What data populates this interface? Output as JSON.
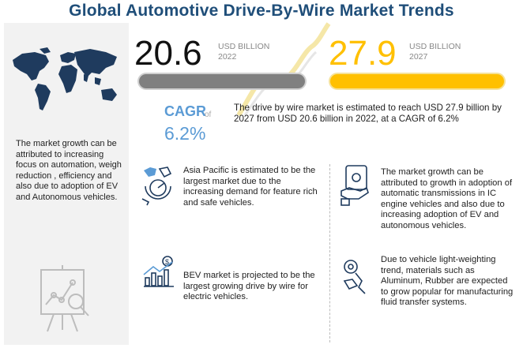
{
  "title": "Global Automotive Drive-By-Wire Market Trends",
  "market_2022": {
    "value": "20.6",
    "unit": "USD BILLION",
    "year": "2022",
    "bar_color": "#808080"
  },
  "market_2027": {
    "value": "27.9",
    "unit": "USD BILLION",
    "year": "2027",
    "bar_color": "#ffc000"
  },
  "cagr": {
    "label": "CAGR",
    "of": "of",
    "value": "6.2%"
  },
  "summary": "The drive by wire market is estimated to reach USD 27.9 billion by 2027 from USD 20.6 billion in 2022, at a CAGR of 6.2%",
  "sidebar": {
    "text": "The market growth can be attributed to increasing focus on automation, weigh reduction , efficiency and also due to adoption of EV and Autonomous vehicles."
  },
  "insights": [
    {
      "icon": "asia-pacific-map-icon",
      "text": "Asia Pacific is estimated to be the largest market due to the increasing demand for feature rich and safe vehicles."
    },
    {
      "icon": "transmission-hand-icon",
      "text": "The market growth can be attributed to growth in adoption of automatic transmissions in IC engine vehicles and also due to increasing adoption of EV and autonomous vehicles."
    },
    {
      "icon": "bev-growth-chart-icon",
      "text": "BEV market is projected to be the largest growing drive by wire for electric vehicles."
    },
    {
      "icon": "lightweight-materials-icon",
      "text": "Due to vehicle light-weighting trend, materials such as Aluminum, Rubber are expected to grow popular for manufacturing fluid transfer systems."
    }
  ],
  "colors": {
    "title": "#1f4e79",
    "accent_blue": "#5b9bd5",
    "accent_yellow": "#ffc000",
    "gray": "#808080"
  }
}
